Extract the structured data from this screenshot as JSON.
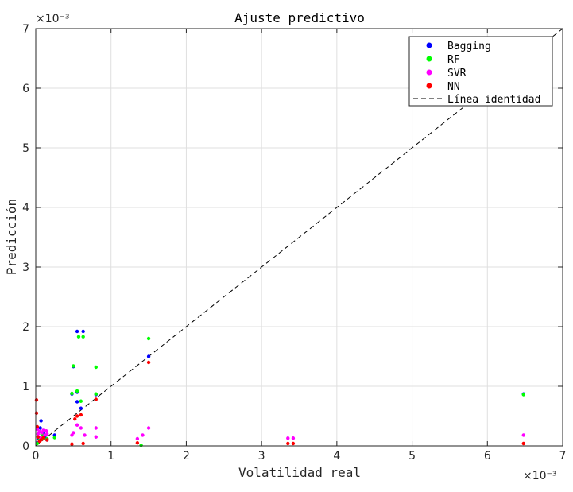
{
  "chart_data": {
    "type": "scatter",
    "title": "Ajuste predictivo",
    "xlabel": "Volatilidad real",
    "ylabel": "Predicción",
    "x_exponent": "×10⁻³",
    "y_exponent": "×10⁻³",
    "xlim": [
      0,
      7
    ],
    "ylim": [
      0,
      7
    ],
    "xticks": [
      "0",
      "1",
      "2",
      "3",
      "4",
      "5",
      "6",
      "7"
    ],
    "yticks": [
      "0",
      "1",
      "2",
      "3",
      "4",
      "5",
      "6",
      "7"
    ],
    "grid": true,
    "legend_position": "top-right",
    "series": [
      {
        "name": "Bagging",
        "color": "#0000ff",
        "points": [
          [
            0.02,
            0.05
          ],
          [
            0.04,
            0.12
          ],
          [
            0.06,
            0.3
          ],
          [
            0.07,
            0.42
          ],
          [
            0.1,
            0.2
          ],
          [
            0.12,
            0.15
          ],
          [
            0.15,
            0.1
          ],
          [
            0.25,
            0.18
          ],
          [
            0.48,
            0.87
          ],
          [
            0.5,
            1.33
          ],
          [
            0.55,
            0.9
          ],
          [
            0.55,
            0.74
          ],
          [
            0.55,
            1.92
          ],
          [
            0.6,
            0.63
          ],
          [
            0.63,
            1.92
          ],
          [
            0.8,
            0.86
          ],
          [
            1.5,
            1.5
          ],
          [
            6.48,
            0.87
          ]
        ]
      },
      {
        "name": "RF",
        "color": "#00ff00",
        "points": [
          [
            0.02,
            0.04
          ],
          [
            0.05,
            0.1
          ],
          [
            0.08,
            0.2
          ],
          [
            0.1,
            0.13
          ],
          [
            0.15,
            0.12
          ],
          [
            0.25,
            0.14
          ],
          [
            0.48,
            0.88
          ],
          [
            0.5,
            1.34
          ],
          [
            0.55,
            0.92
          ],
          [
            0.57,
            1.83
          ],
          [
            0.6,
            0.75
          ],
          [
            0.63,
            1.83
          ],
          [
            0.8,
            1.32
          ],
          [
            0.8,
            0.87
          ],
          [
            1.4,
            0.01
          ],
          [
            1.5,
            1.8
          ],
          [
            6.48,
            0.86
          ]
        ]
      },
      {
        "name": "SVR",
        "color": "#ff00ff",
        "points": [
          [
            0.02,
            0.28
          ],
          [
            0.03,
            0.2
          ],
          [
            0.05,
            0.24
          ],
          [
            0.06,
            0.14
          ],
          [
            0.08,
            0.22
          ],
          [
            0.1,
            0.26
          ],
          [
            0.12,
            0.18
          ],
          [
            0.14,
            0.25
          ],
          [
            0.15,
            0.2
          ],
          [
            0.48,
            0.18
          ],
          [
            0.5,
            0.22
          ],
          [
            0.55,
            0.35
          ],
          [
            0.6,
            0.3
          ],
          [
            0.65,
            0.18
          ],
          [
            0.8,
            0.3
          ],
          [
            0.8,
            0.15
          ],
          [
            1.35,
            0.12
          ],
          [
            1.42,
            0.18
          ],
          [
            1.5,
            0.3
          ],
          [
            3.35,
            0.13
          ],
          [
            3.42,
            0.13
          ],
          [
            6.48,
            0.18
          ]
        ]
      },
      {
        "name": "NN",
        "color": "#ff0000",
        "points": [
          [
            0.01,
            0.77
          ],
          [
            0.01,
            0.55
          ],
          [
            0.02,
            0.32
          ],
          [
            0.03,
            0.15
          ],
          [
            0.05,
            0.08
          ],
          [
            0.07,
            0.1
          ],
          [
            0.1,
            0.14
          ],
          [
            0.15,
            0.1
          ],
          [
            0.48,
            0.03
          ],
          [
            0.52,
            0.45
          ],
          [
            0.55,
            0.5
          ],
          [
            0.6,
            0.52
          ],
          [
            0.63,
            0.04
          ],
          [
            0.8,
            0.78
          ],
          [
            1.35,
            0.05
          ],
          [
            1.5,
            1.4
          ],
          [
            3.35,
            0.04
          ],
          [
            3.42,
            0.04
          ],
          [
            6.48,
            0.04
          ]
        ]
      }
    ],
    "identity_line": {
      "name": "Línea identidad",
      "from": [
        0,
        0
      ],
      "to": [
        7,
        7
      ]
    }
  }
}
